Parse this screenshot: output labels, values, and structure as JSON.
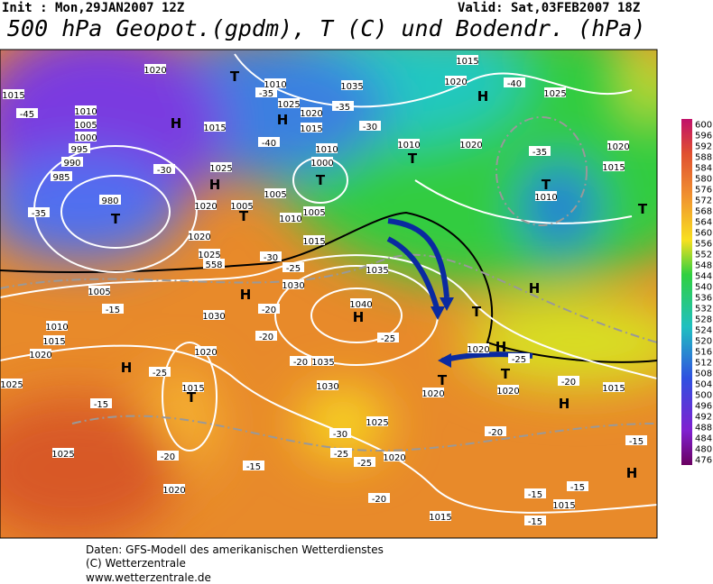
{
  "header": {
    "init": "Init : Mon,29JAN2007 12Z",
    "valid": "Valid: Sat,03FEB2007 18Z",
    "title": "500 hPa Geopot.(gpdm), T (C) und Bodendr. (hPa)"
  },
  "colorbar": {
    "labels": [
      600,
      596,
      592,
      588,
      584,
      580,
      576,
      572,
      568,
      564,
      560,
      556,
      552,
      548,
      544,
      540,
      536,
      532,
      528,
      524,
      520,
      516,
      512,
      508,
      504,
      500,
      496,
      492,
      488,
      484,
      480,
      476
    ]
  },
  "map_labels": [
    "1020",
    "T",
    "1010",
    "1035",
    "1015",
    "1020",
    "H",
    "-40",
    "1015",
    "-45",
    "1010",
    "H",
    "-35",
    "1025",
    "1020",
    "-35",
    "-30",
    "1025",
    "1005",
    "1000",
    "995",
    "990",
    "985",
    "1015",
    "H",
    "1015",
    "-40",
    "1010",
    "1000",
    "T",
    "1010",
    "T",
    "1020",
    "-35",
    "1020",
    "1015",
    "T",
    "1010",
    "T",
    "-30",
    "1025",
    "H",
    "1020",
    "1005",
    "T",
    "1005",
    "1010",
    "1005",
    "-35",
    "980",
    "T",
    "1015",
    "1020",
    "1025",
    "558",
    "-30",
    "-25",
    "1035",
    "1030",
    "H",
    "1030",
    "-20",
    "1040",
    "H",
    "-25",
    "-20",
    "1005",
    "-15",
    "1010",
    "1015",
    "1020",
    "H",
    "1020",
    "-25",
    "1015",
    "T",
    "1035",
    "-20",
    "1030",
    "H",
    "1020",
    "T",
    "H",
    "T",
    "-25",
    "1020",
    "1020",
    "H",
    "T",
    "-20",
    "1015",
    "H",
    "1025",
    "-15",
    "-30",
    "1025",
    "-20",
    "1025",
    "-20",
    "-25",
    "-25",
    "1020",
    "-15",
    "1020",
    "-20",
    "-15",
    "-15",
    "1015",
    "-15",
    "1015",
    "-15"
  ],
  "footer": [
    "Daten: GFS-Modell des amerikanischen Wetterdienstes",
    "(C) Wetterzentrale",
    "www.wetterzentrale.de"
  ]
}
